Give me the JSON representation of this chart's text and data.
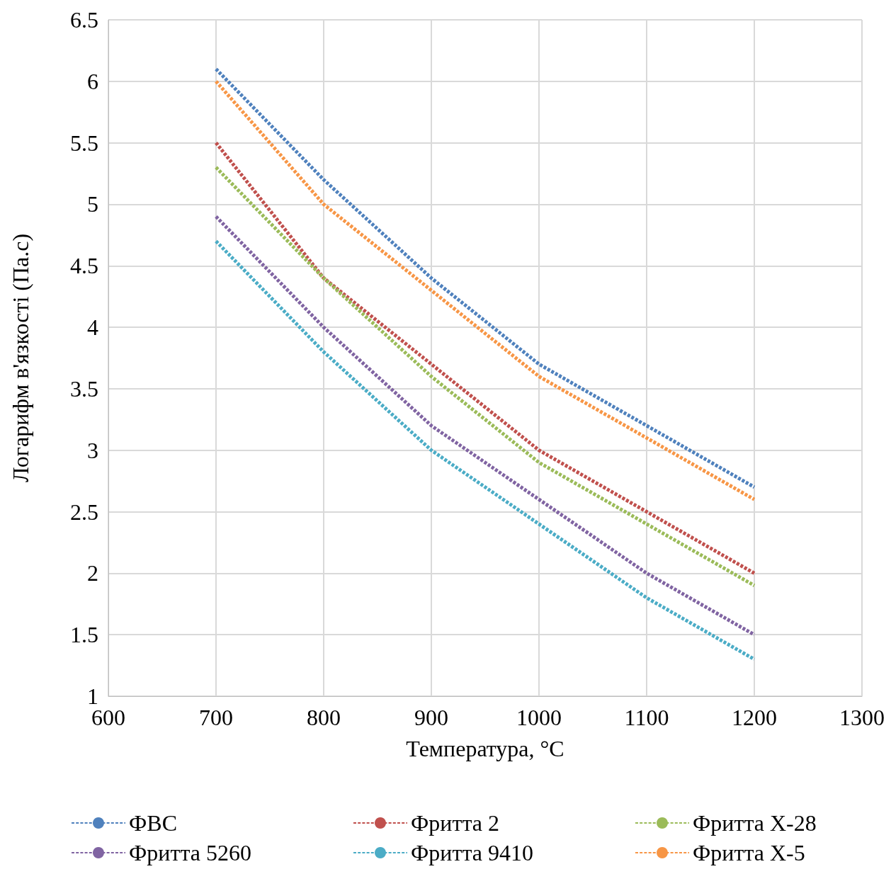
{
  "chart_data": {
    "type": "line",
    "xlabel": "Температура, °C",
    "ylabel": "Логарифм в'язкості (Па.с)",
    "x": [
      700,
      800,
      900,
      1000,
      1100,
      1200
    ],
    "series": [
      {
        "name": "ФВС",
        "color": "#4f81bd",
        "values": [
          6.1,
          5.2,
          4.4,
          3.7,
          3.2,
          2.7
        ]
      },
      {
        "name": "Фритта 2",
        "color": "#c0504d",
        "values": [
          5.5,
          4.4,
          3.7,
          3.0,
          2.5,
          2.0
        ]
      },
      {
        "name": "Фритта Х-28",
        "color": "#9bbb59",
        "values": [
          5.3,
          4.4,
          3.6,
          2.9,
          2.4,
          1.9
        ]
      },
      {
        "name": "Фритта 5260",
        "color": "#8064a2",
        "values": [
          4.9,
          4.0,
          3.2,
          2.6,
          2.0,
          1.5
        ]
      },
      {
        "name": "Фритта 9410",
        "color": "#4bacc6",
        "values": [
          4.7,
          3.8,
          3.0,
          2.4,
          1.8,
          1.3
        ]
      },
      {
        "name": "Фритта Х-5",
        "color": "#f79646",
        "values": [
          6.0,
          5.0,
          4.3,
          3.6,
          3.1,
          2.6
        ]
      }
    ],
    "xlim": [
      600,
      1300
    ],
    "xticks": [
      600,
      700,
      800,
      900,
      1000,
      1100,
      1200,
      1300
    ],
    "ylim": [
      1,
      6.5
    ],
    "yticks": [
      1,
      1.5,
      2,
      2.5,
      3,
      3.5,
      4,
      4.5,
      5,
      5.5,
      6,
      6.5
    ],
    "grid": true,
    "legend": "bottom",
    "marker": "none",
    "line_style": "dashed"
  }
}
